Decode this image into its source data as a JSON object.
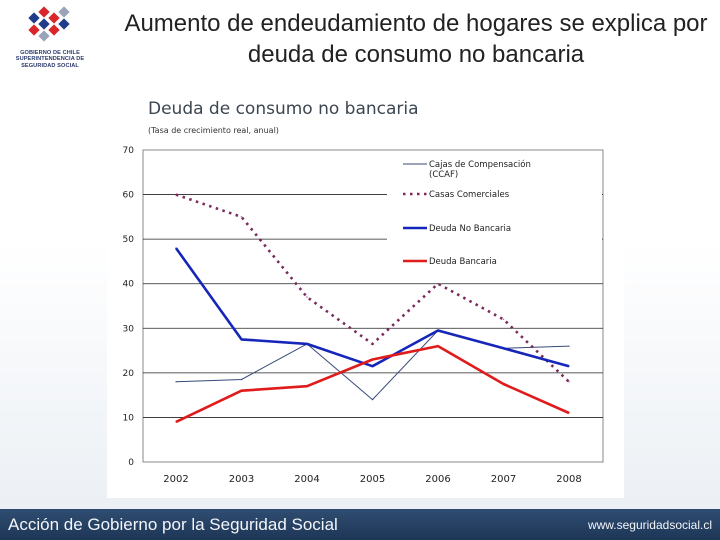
{
  "slide": {
    "title": "Aumento de endeudamiento de hogares se explica por deuda de consumo no bancaria"
  },
  "logo": {
    "line1": "GOBIERNO DE CHILE",
    "line2": "SUPERINTENDENCIA DE",
    "line3": "SEGURIDAD SOCIAL"
  },
  "footer": {
    "left_text": "Acción de Gobierno por la Seguridad Social",
    "right_text": "www.seguridadsocial.cl"
  },
  "colors": {
    "ccaf": "#3a4a7a",
    "casas": "#7a2a5c",
    "no_bancaria": "#1626b8",
    "bancaria": "#e01b1b",
    "title": "#3c4650",
    "footer_bg": "#2a4568"
  },
  "chart_data": {
    "type": "line",
    "title": "Deuda de consumo no bancaria",
    "subtitle": "(Tasa de crecimiento real, anual)",
    "xlabel": "",
    "ylabel": "",
    "ylim": [
      0,
      70
    ],
    "yticks": [
      0,
      10,
      20,
      30,
      40,
      50,
      60,
      70
    ],
    "grid": true,
    "legend_position": "top-right",
    "categories": [
      "2002",
      "2003",
      "2004",
      "2005",
      "2006",
      "2007",
      "2008"
    ],
    "series": [
      {
        "key": "ccaf",
        "name": "Cajas de Compensación (CCAF)",
        "legend_lines": [
          "Cajas de Compensación",
          "(CCAF)"
        ],
        "style": "thin",
        "color": "#3a4a7a",
        "values": [
          18,
          18.5,
          26.5,
          14,
          29.5,
          25.5,
          26
        ]
      },
      {
        "key": "casas",
        "name": "Casas Comerciales",
        "legend_lines": [
          "Casas Comerciales"
        ],
        "style": "dotted",
        "color": "#7a2a5c",
        "values": [
          60,
          55,
          37,
          26.5,
          40,
          32,
          18
        ]
      },
      {
        "key": "no_bancaria",
        "name": "Deuda No Bancaria",
        "legend_lines": [
          "Deuda No Bancaria"
        ],
        "style": "thick",
        "color": "#1626b8",
        "values": [
          48,
          27.5,
          26.5,
          21.5,
          29.5,
          25.5,
          21.5
        ]
      },
      {
        "key": "bancaria",
        "name": "Deuda Bancaria",
        "legend_lines": [
          "Deuda Bancaria"
        ],
        "style": "thick",
        "color": "#e01b1b",
        "values": [
          9,
          16,
          17,
          23,
          26,
          17.5,
          11
        ]
      }
    ]
  }
}
